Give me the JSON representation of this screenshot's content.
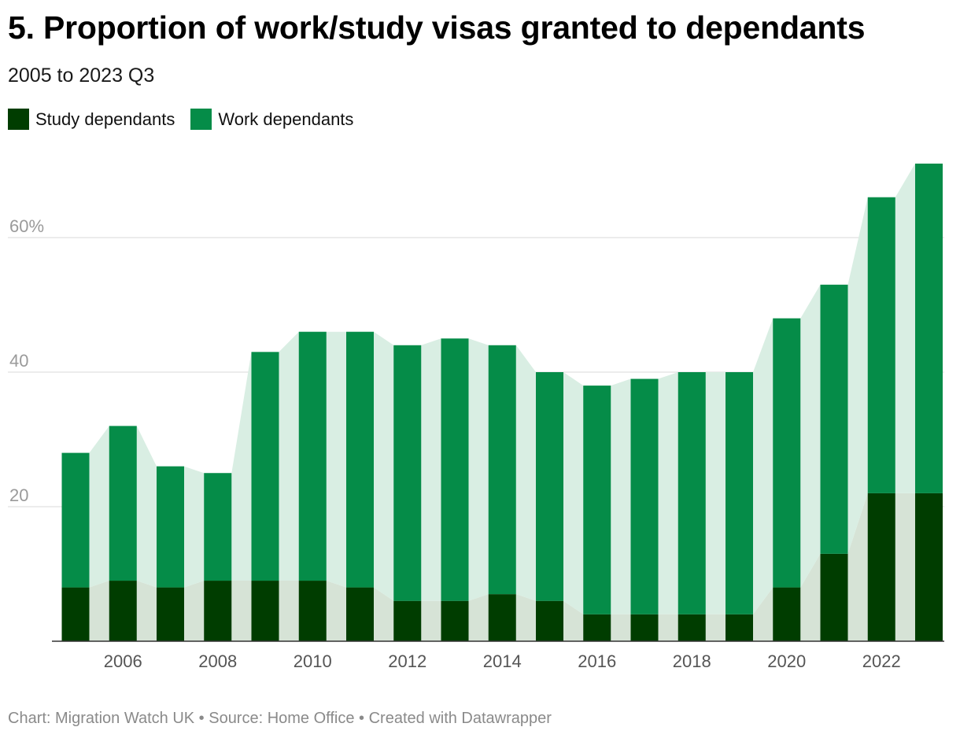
{
  "header": {
    "title": "5. Proportion of work/study visas granted to dependants",
    "subtitle": "2005 to 2023 Q3"
  },
  "legend": {
    "items": [
      {
        "label": "Study dependants",
        "color": "#003d00"
      },
      {
        "label": "Work dependants",
        "color": "#058c48"
      }
    ]
  },
  "footer": {
    "text": "Chart: Migration Watch UK • Source: Home Office • Created with Datawrapper"
  },
  "colors": {
    "study": "#003d00",
    "work": "#058c48",
    "study_band": "#d6e3d6",
    "work_band": "#d9eee3",
    "grid": "#e0e0e0",
    "axis": "#333333"
  },
  "chart_data": {
    "type": "bar",
    "stacked": true,
    "title": "5. Proportion of work/study visas granted to dependants",
    "subtitle": "2005 to 2023 Q3",
    "xlabel": "",
    "ylabel": "",
    "ylim": [
      0,
      72
    ],
    "y_ticks": [
      20,
      40,
      60
    ],
    "y_tick_labels": [
      "20",
      "40",
      "60%"
    ],
    "categories": [
      2005,
      2006,
      2007,
      2008,
      2009,
      2010,
      2011,
      2012,
      2013,
      2014,
      2015,
      2016,
      2017,
      2018,
      2019,
      2020,
      2021,
      2022,
      2023
    ],
    "x_tick_labels": [
      "2006",
      "2008",
      "2010",
      "2012",
      "2014",
      "2016",
      "2018",
      "2020",
      "2022"
    ],
    "series": [
      {
        "name": "Study dependants",
        "values": [
          8,
          9,
          8,
          9,
          9,
          9,
          8,
          6,
          6,
          7,
          6,
          4,
          4,
          4,
          4,
          8,
          13,
          22,
          22
        ]
      },
      {
        "name": "Work dependants",
        "values": [
          20,
          23,
          18,
          16,
          34,
          37,
          38,
          38,
          39,
          37,
          34,
          34,
          35,
          36,
          36,
          40,
          40,
          44,
          49
        ]
      }
    ],
    "legend_position": "top-left",
    "grid": true
  }
}
